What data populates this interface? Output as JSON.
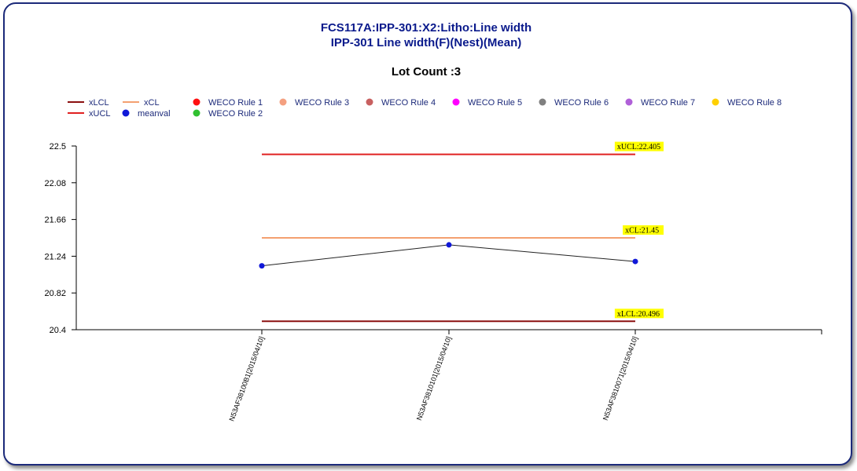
{
  "titles": {
    "line1": "FCS117A:IPP-301:X2:Litho:Line width",
    "line2": "IPP-301 Line width(F)(Nest)(Mean)",
    "lot_count": "Lot Count :3"
  },
  "colors": {
    "title": "#0a1a8c",
    "xUCL": "#e02020",
    "xCL": "#f4a070",
    "xLCL": "#8b1010",
    "meanval": "#1018d8",
    "meanline": "#222222",
    "limit_label_bg": "#ffff00"
  },
  "legend": [
    {
      "label": "xLCL",
      "kind": "line",
      "color": "#8b1010"
    },
    {
      "label": "xCL",
      "kind": "line",
      "color": "#f4a070"
    },
    {
      "label": "WECO Rule 1",
      "kind": "dot",
      "color": "#ff1010"
    },
    {
      "label": "WECO Rule 3",
      "kind": "dot",
      "color": "#f4a080"
    },
    {
      "label": "WECO Rule 4",
      "kind": "dot",
      "color": "#c86060"
    },
    {
      "label": "WECO Rule 5",
      "kind": "dot",
      "color": "#ff00ff"
    },
    {
      "label": "WECO Rule 6",
      "kind": "dot",
      "color": "#808080"
    },
    {
      "label": "WECO Rule 7",
      "kind": "dot",
      "color": "#b060d8"
    },
    {
      "label": "WECO Rule 8",
      "kind": "dot",
      "color": "#ffd000"
    },
    {
      "label": "xUCL",
      "kind": "line",
      "color": "#e02020"
    },
    {
      "label": "meanval",
      "kind": "dot",
      "color": "#1018d8"
    },
    {
      "label": "WECO Rule 2",
      "kind": "dot",
      "color": "#30c030"
    }
  ],
  "chart_data": {
    "type": "line",
    "x": [
      "N53AF38100B1[2015/04/10]",
      "N53AF3810101[2015/04/10]",
      "N53AF3810071[2015/04/10]"
    ],
    "series": [
      {
        "name": "meanval",
        "values": [
          21.13,
          21.37,
          21.18
        ]
      }
    ],
    "limits": [
      {
        "name": "xUCL",
        "value": 22.405,
        "label": "xUCL:22.405"
      },
      {
        "name": "xCL",
        "value": 21.45,
        "label": "xCL:21.45"
      },
      {
        "name": "xLCL",
        "value": 20.496,
        "label": "xLCL:20.496"
      }
    ],
    "ylim": [
      20.4,
      22.5
    ],
    "yticks": [
      "22.5",
      "22.08",
      "21.66",
      "21.24",
      "20.82",
      "20.4"
    ],
    "ytick_values": [
      22.5,
      22.08,
      21.66,
      21.24,
      20.82,
      20.4
    ],
    "grid": false,
    "legend_position": "top-left"
  }
}
